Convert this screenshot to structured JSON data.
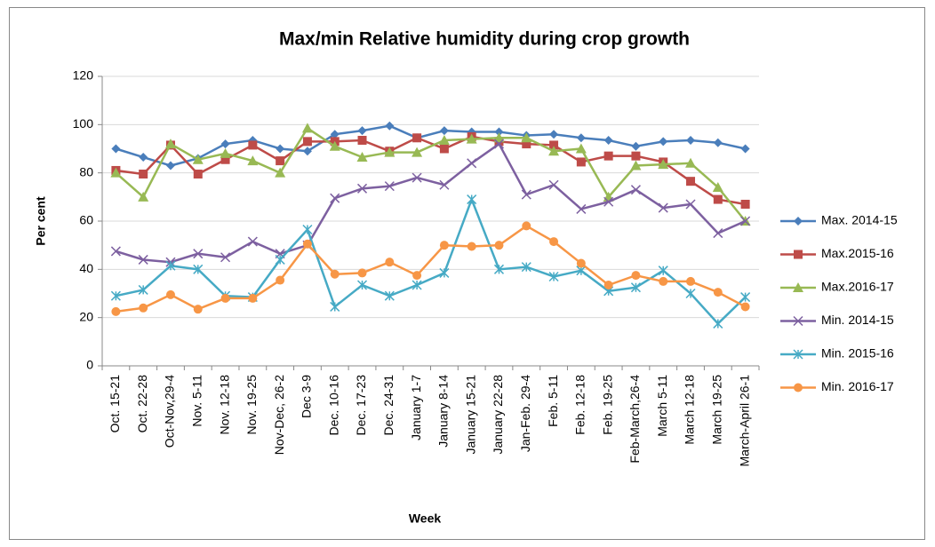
{
  "chart_data": {
    "type": "line",
    "title": "Max/min Relative humidity during crop growth",
    "x_label": "Week",
    "y_label": "Per cent",
    "categories": [
      "Oct. 15-21",
      "Oct. 22-28",
      "Oct-Nov,29-4",
      "Nov. 5-11",
      "Nov. 12-18",
      "Nov. 19-25",
      "Nov-Dec, 26-2",
      "Dec 3-9",
      "Dec. 10-16",
      "Dec. 17-23",
      "Dec. 24-31",
      "January 1-7",
      "January 8-14",
      "January 15-21",
      "January 22-28",
      "Jan-Feb. 29-4",
      "Feb. 5-11",
      "Feb. 12-18",
      "Feb. 19-25",
      "Feb-March,26-4",
      "March 5-11",
      "March 12-18",
      "March 19-25",
      "March-April 26-1"
    ],
    "series": [
      {
        "name": "Max. 2014-15",
        "color": "#4a7ebb",
        "marker": "diamond",
        "values": [
          90,
          86.5,
          83,
          86,
          92,
          93.5,
          90,
          89,
          96,
          97.5,
          99.5,
          94.5,
          97.5,
          97,
          97,
          95.5,
          96,
          94.5,
          93.5,
          91,
          93,
          93.5,
          92.5,
          90
        ]
      },
      {
        "name": "Max.2015-16",
        "color": "#be4b48",
        "marker": "square",
        "values": [
          81,
          79.5,
          91.5,
          79.5,
          85.5,
          91.5,
          85,
          93,
          93,
          93.5,
          89,
          94.5,
          90,
          95,
          93,
          92,
          91.5,
          84.5,
          87,
          87,
          84.5,
          76.5,
          69,
          67
        ]
      },
      {
        "name": "Max.2016-17",
        "color": "#98b954",
        "marker": "triangle",
        "values": [
          80,
          70,
          92,
          85.5,
          88,
          85,
          80,
          98.5,
          91,
          86.5,
          88.5,
          88.5,
          93.5,
          94,
          94.5,
          94.5,
          89,
          90,
          70,
          83,
          83.5,
          84,
          74,
          60
        ]
      },
      {
        "name": "Min. 2014-15",
        "color": "#7d60a0",
        "marker": "x",
        "values": [
          47.5,
          44,
          43,
          46.5,
          45,
          51.5,
          46.5,
          50,
          69.5,
          73.5,
          74.5,
          78,
          75,
          84,
          92,
          71,
          75,
          65,
          68,
          73,
          65.5,
          67,
          55,
          60
        ]
      },
      {
        "name": "Min. 2015-16",
        "color": "#46aac5",
        "marker": "star",
        "values": [
          29,
          31.5,
          41.5,
          40,
          29,
          28.5,
          44,
          56.5,
          24.5,
          33.5,
          29,
          33.5,
          38.5,
          69,
          40,
          41,
          37,
          39.5,
          31,
          32.5,
          39.5,
          30,
          17.5,
          28.5
        ]
      },
      {
        "name": "Min. 2016-17",
        "color": "#f79646",
        "marker": "circle",
        "values": [
          22.5,
          24,
          29.5,
          23.5,
          28,
          28,
          35.5,
          50.5,
          38,
          38.5,
          43,
          37.5,
          50,
          49.5,
          50,
          58,
          51.5,
          42.5,
          33.5,
          37.5,
          35,
          35,
          30.5,
          24.5
        ]
      }
    ],
    "ylim": [
      0,
      120
    ],
    "yticks": [
      0,
      20,
      40,
      60,
      80,
      100,
      120
    ],
    "grid": true,
    "legend": "right"
  }
}
